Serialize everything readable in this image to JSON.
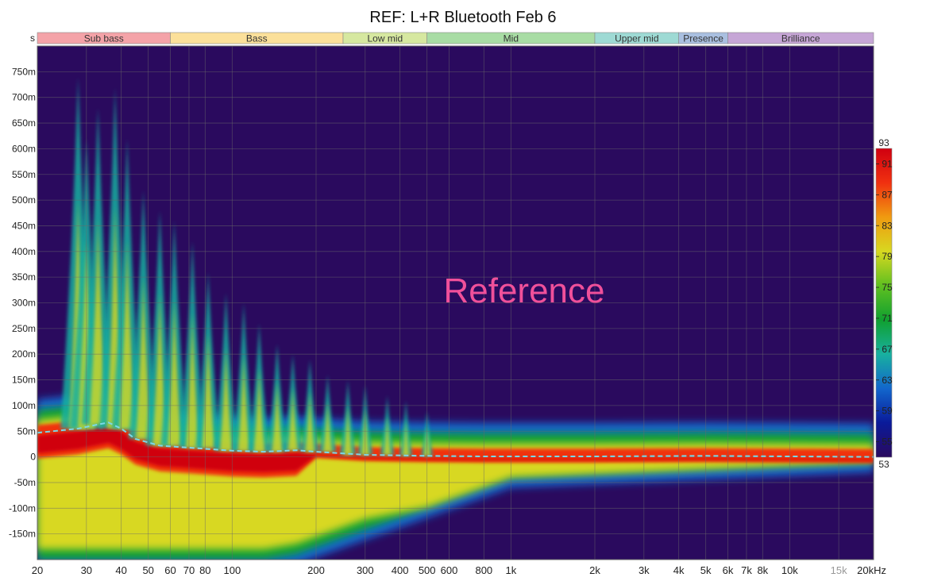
{
  "chart_data": {
    "type": "heatmap",
    "title": "REF: L+R Bluetooth Feb 6",
    "annotation": "Reference",
    "x_axis": {
      "scale": "log",
      "unit": "kHz",
      "range": [
        20,
        20000
      ],
      "ticks": [
        {
          "value": 20,
          "label": "20"
        },
        {
          "value": 30,
          "label": "30"
        },
        {
          "value": 40,
          "label": "40"
        },
        {
          "value": 50,
          "label": "50"
        },
        {
          "value": 60,
          "label": "60"
        },
        {
          "value": 70,
          "label": "70"
        },
        {
          "value": 80,
          "label": "80"
        },
        {
          "value": 100,
          "label": "100"
        },
        {
          "value": 200,
          "label": "200"
        },
        {
          "value": 300,
          "label": "300"
        },
        {
          "value": 400,
          "label": "400"
        },
        {
          "value": 500,
          "label": "500"
        },
        {
          "value": 600,
          "label": "600"
        },
        {
          "value": 800,
          "label": "800"
        },
        {
          "value": 1000,
          "label": "1k"
        },
        {
          "value": 2000,
          "label": "2k"
        },
        {
          "value": 3000,
          "label": "3k"
        },
        {
          "value": 4000,
          "label": "4k"
        },
        {
          "value": 5000,
          "label": "5k"
        },
        {
          "value": 6000,
          "label": "6k"
        },
        {
          "value": 7000,
          "label": "7k"
        },
        {
          "value": 8000,
          "label": "8k"
        },
        {
          "value": 10000,
          "label": "10k"
        },
        {
          "value": 15000,
          "label": "15k"
        },
        {
          "value": 20000,
          "label": "20kHz"
        }
      ]
    },
    "y_axis": {
      "unit": "s",
      "range": [
        -0.2,
        0.8
      ],
      "ticks": [
        {
          "value": 0.75,
          "label": "750m"
        },
        {
          "value": 0.7,
          "label": "700m"
        },
        {
          "value": 0.65,
          "label": "650m"
        },
        {
          "value": 0.6,
          "label": "600m"
        },
        {
          "value": 0.55,
          "label": "550m"
        },
        {
          "value": 0.5,
          "label": "500m"
        },
        {
          "value": 0.45,
          "label": "450m"
        },
        {
          "value": 0.4,
          "label": "400m"
        },
        {
          "value": 0.35,
          "label": "350m"
        },
        {
          "value": 0.3,
          "label": "300m"
        },
        {
          "value": 0.25,
          "label": "250m"
        },
        {
          "value": 0.2,
          "label": "200m"
        },
        {
          "value": 0.15,
          "label": "150m"
        },
        {
          "value": 0.1,
          "label": "100m"
        },
        {
          "value": 0.05,
          "label": "50m"
        },
        {
          "value": 0,
          "label": "0"
        },
        {
          "value": -0.05,
          "label": "-50m"
        },
        {
          "value": -0.1,
          "label": "-100m"
        },
        {
          "value": -0.15,
          "label": "-150m"
        }
      ]
    },
    "bands": [
      {
        "name": "Sub bass",
        "from": 20,
        "to": 60,
        "color": "#f4a3a8"
      },
      {
        "name": "Bass",
        "from": 60,
        "to": 250,
        "color": "#fbe09a"
      },
      {
        "name": "Low mid",
        "from": 250,
        "to": 500,
        "color": "#d6e8a0"
      },
      {
        "name": "Mid",
        "from": 500,
        "to": 2000,
        "color": "#a8dca4"
      },
      {
        "name": "Upper mid",
        "from": 2000,
        "to": 4000,
        "color": "#9edad4"
      },
      {
        "name": "Presence",
        "from": 4000,
        "to": 6000,
        "color": "#a9bfe0"
      },
      {
        "name": "Brilliance",
        "from": 6000,
        "to": 20000,
        "color": "#c6a6d6"
      }
    ],
    "colorbar": {
      "min": 53,
      "max": 93,
      "ticks": [
        91,
        87,
        83,
        79,
        75,
        71,
        67,
        63,
        59,
        55
      ],
      "colors": [
        "#2a0a5e",
        "#0a1a9a",
        "#1266cc",
        "#18b0a0",
        "#10a030",
        "#60c020",
        "#d8d820",
        "#f09a10",
        "#f03010",
        "#d00010"
      ]
    },
    "peak_delay_line": {
      "color": "#7ad8e8",
      "points": [
        [
          20,
          0.047
        ],
        [
          28,
          0.055
        ],
        [
          33,
          0.063
        ],
        [
          36,
          0.067
        ],
        [
          40,
          0.055
        ],
        [
          45,
          0.035
        ],
        [
          55,
          0.022
        ],
        [
          70,
          0.018
        ],
        [
          100,
          0.012
        ],
        [
          130,
          0.01
        ],
        [
          170,
          0.013
        ],
        [
          200,
          0.01
        ],
        [
          300,
          0.004
        ],
        [
          500,
          0.002
        ],
        [
          800,
          0.001
        ],
        [
          1000,
          0.001
        ],
        [
          2000,
          0.001
        ],
        [
          5000,
          0.002
        ],
        [
          10000,
          0.001
        ],
        [
          20000,
          0.0
        ]
      ]
    },
    "resonance_trails": [
      [
        28,
        0.74
      ],
      [
        30,
        0.62
      ],
      [
        33,
        0.68
      ],
      [
        38,
        0.72
      ],
      [
        42,
        0.62
      ],
      [
        48,
        0.52
      ],
      [
        55,
        0.48
      ],
      [
        62,
        0.46
      ],
      [
        72,
        0.42
      ],
      [
        82,
        0.36
      ],
      [
        95,
        0.32
      ],
      [
        110,
        0.3
      ],
      [
        125,
        0.26
      ],
      [
        145,
        0.22
      ],
      [
        165,
        0.2
      ],
      [
        190,
        0.19
      ],
      [
        220,
        0.16
      ],
      [
        260,
        0.15
      ],
      [
        300,
        0.14
      ],
      [
        360,
        0.12
      ],
      [
        420,
        0.11
      ],
      [
        500,
        0.09
      ]
    ]
  }
}
